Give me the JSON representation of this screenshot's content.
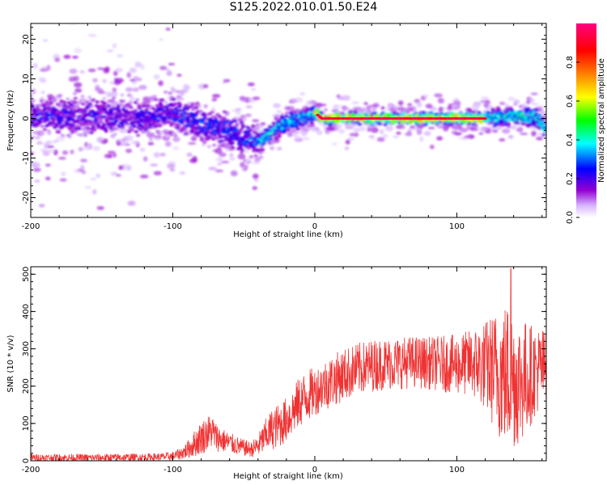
{
  "title": "S125.2022.010.01.50.E24",
  "colors": {
    "snr_line": "#f03232",
    "axis": "#000000",
    "background": "#ffffff"
  },
  "chart_data": [
    {
      "type": "heatmap",
      "title": "S125.2022.010.01.50.E24",
      "xlabel": "Height of straight line (km)",
      "ylabel": "Frequency (Hz)",
      "xlim": [
        -200,
        163
      ],
      "ylim": [
        -25,
        24
      ],
      "xticks": [
        -200,
        -100,
        0,
        100
      ],
      "yticks": [
        -20,
        -10,
        0,
        10,
        20
      ],
      "colorbar": {
        "label": "Normalized spectral amplitude",
        "range": [
          0.0,
          1.0
        ],
        "ticks": [
          0.0,
          0.2,
          0.4,
          0.6,
          0.8
        ],
        "colormap": [
          "#ffffff",
          "#9400d3",
          "#0000ff",
          "#00ffff",
          "#00ff00",
          "#ffff00",
          "#ff7f00",
          "#ff0000",
          "#ff00a0"
        ]
      },
      "ridge": {
        "x": [
          -200,
          -150,
          -120,
          -100,
          -80,
          -60,
          -45,
          -40,
          -35,
          -25,
          -15,
          -5,
          0,
          5,
          10,
          20,
          40,
          60,
          80,
          100,
          120,
          140,
          155,
          163
        ],
        "y": [
          0.5,
          0.5,
          0,
          1.5,
          -1.5,
          -3,
          -5.5,
          -6,
          -5,
          -2,
          -0.5,
          0.5,
          1.5,
          0,
          0,
          0,
          0,
          0,
          0,
          0,
          0,
          0.5,
          0.5,
          -2.5
        ]
      }
    },
    {
      "type": "line",
      "xlabel": "Height of straight line (km)",
      "ylabel": "SNR (10 * v/v)",
      "xlim": [
        -200,
        163
      ],
      "ylim": [
        0,
        520
      ],
      "xticks": [
        -200,
        -100,
        0,
        100
      ],
      "yticks": [
        0,
        100,
        200,
        300,
        400,
        500
      ],
      "envelope": {
        "x": [
          -200,
          -150,
          -110,
          -100,
          -95,
          -90,
          -85,
          -80,
          -75,
          -72,
          -70,
          -65,
          -60,
          -55,
          -50,
          -45,
          -40,
          -35,
          -30,
          -25,
          -20,
          -15,
          -10,
          -5,
          0,
          5,
          10,
          20,
          30,
          40,
          50,
          60,
          70,
          80,
          90,
          100,
          110,
          120,
          125,
          130,
          135,
          140,
          145,
          150,
          155,
          160,
          163
        ],
        "mean": [
          8,
          8,
          10,
          12,
          18,
          28,
          45,
          62,
          75,
          80,
          65,
          55,
          48,
          40,
          35,
          30,
          40,
          65,
          85,
          95,
          110,
          135,
          160,
          175,
          185,
          200,
          210,
          230,
          245,
          255,
          260,
          262,
          265,
          262,
          260,
          258,
          262,
          255,
          245,
          235,
          230,
          220,
          215,
          225,
          240,
          250,
          250
        ],
        "amp": [
          10,
          10,
          10,
          12,
          15,
          22,
          35,
          45,
          48,
          45,
          40,
          32,
          28,
          25,
          22,
          20,
          30,
          45,
          55,
          60,
          60,
          65,
          70,
          70,
          65,
          65,
          70,
          70,
          70,
          70,
          70,
          70,
          70,
          70,
          75,
          80,
          90,
          120,
          150,
          180,
          200,
          190,
          170,
          150,
          120,
          110,
          100
        ]
      },
      "peak": {
        "x": 138,
        "y": 515
      }
    }
  ]
}
